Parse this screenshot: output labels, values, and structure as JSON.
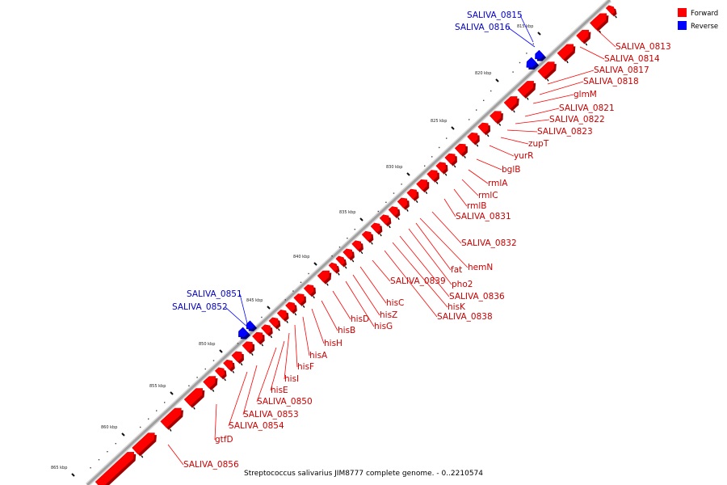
{
  "colors": {
    "forward": "#ff0000",
    "reverse": "#0000ff",
    "backbone": "#a0a0a0",
    "label_forward": "#cc0000",
    "label_reverse": "#0000cc"
  },
  "legend": [
    {
      "label": "Forward",
      "color": "#ff0000"
    },
    {
      "label": "Reverse",
      "color": "#0000ff"
    }
  ],
  "caption": "Streptococcus salivarius JIM8777 complete genome. - 0..2210574",
  "kbp_marks": [
    "815 kbp",
    "820 kbp",
    "825 kbp",
    "830 kbp",
    "835 kbp",
    "840 kbp",
    "845 kbp",
    "850 kbp",
    "855 kbp",
    "860 kbp",
    "865 kbp"
  ],
  "forward_genes": [
    "SALIVA_0813",
    "SALIVA_0814",
    "SALIVA_0817",
    "SALIVA_0818",
    "glmM",
    "SALIVA_0821",
    "SALIVA_0822",
    "SALIVA_0823",
    "zupT",
    "yurR",
    "bglB",
    "rmlA",
    "rmlC",
    "rmlB",
    "SALIVA_0831",
    "SALIVA_0832",
    "fat",
    "hemN",
    "pho2",
    "SALIVA_0836",
    "hisK",
    "SALIVA_0838",
    "SALIVA_0839",
    "hisC",
    "hisZ",
    "hisG",
    "hisD",
    "hisB",
    "hisH",
    "hisA",
    "hisF",
    "hisI",
    "hisE",
    "SALIVA_0850",
    "SALIVA_0853",
    "SALIVA_0854",
    "gtfD",
    "SALIVA_0856"
  ],
  "reverse_genes": [
    "SALIVA_0815",
    "SALIVA_0816",
    "SALIVA_0851",
    "SALIVA_0852"
  ]
}
